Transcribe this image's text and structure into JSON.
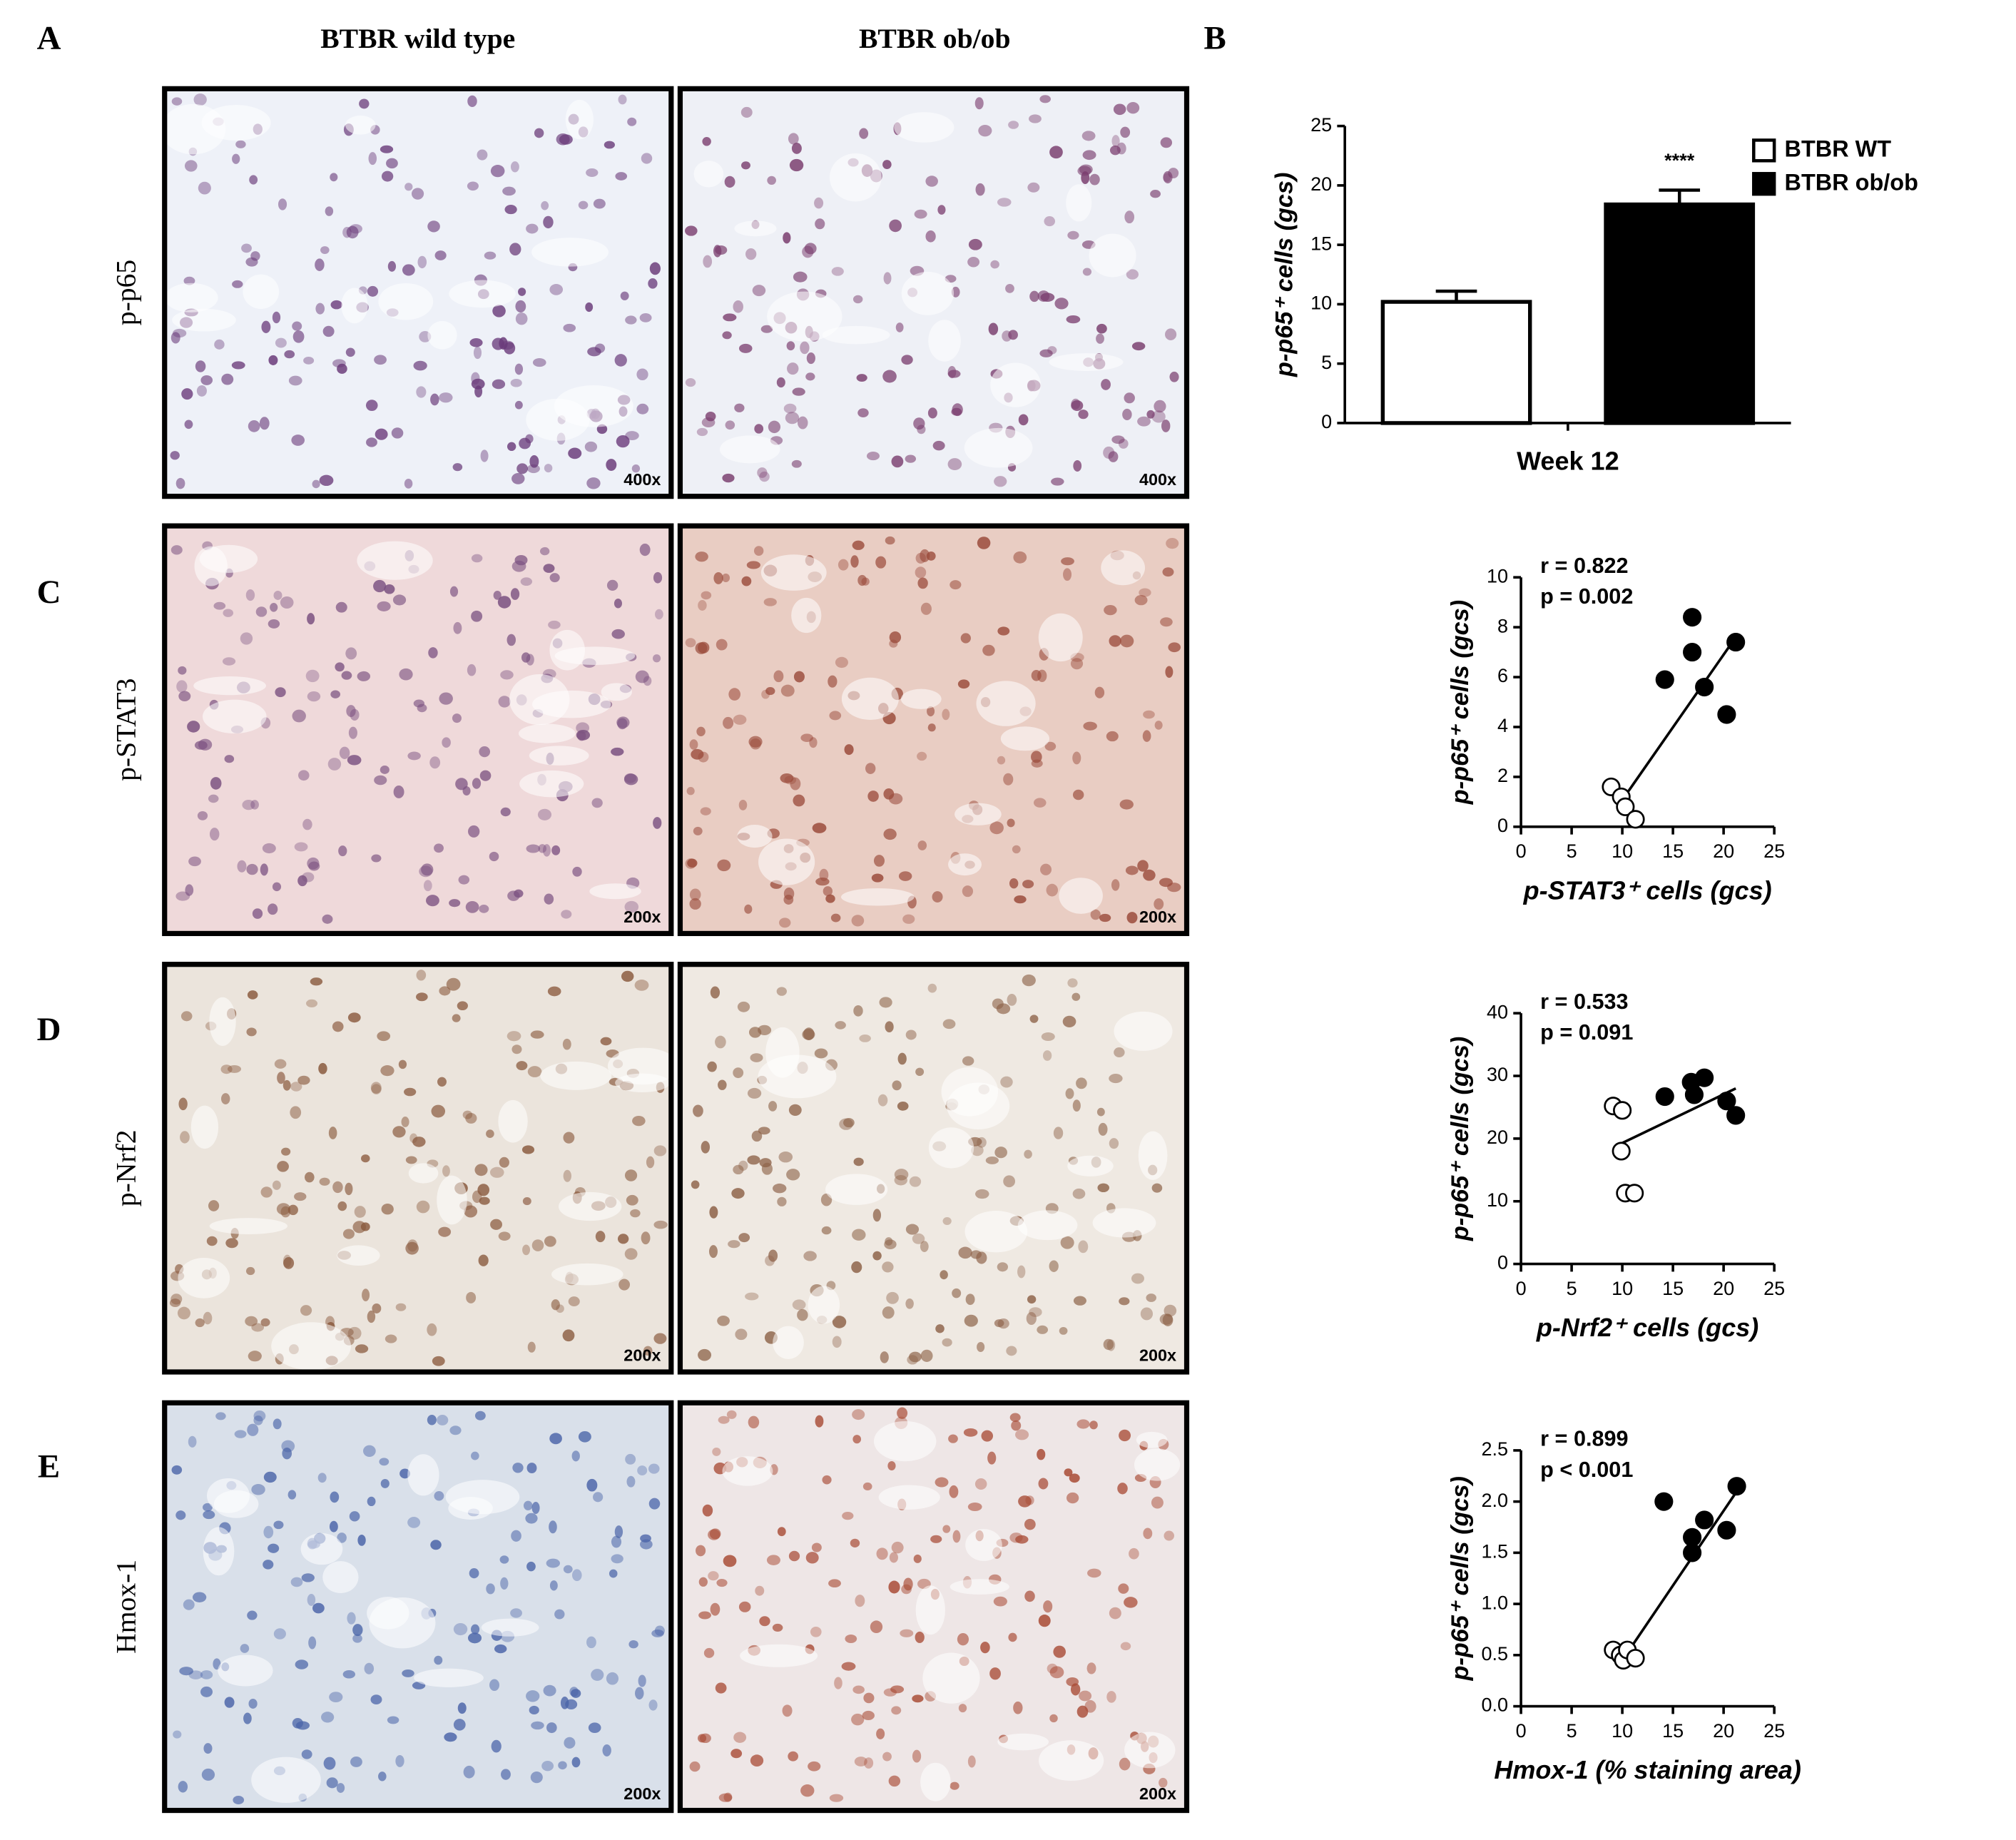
{
  "figure": {
    "panel_labels": [
      "A",
      "B",
      "C",
      "D",
      "E"
    ],
    "column_headers": [
      "BTBR wild type",
      "BTBR ob/ob"
    ],
    "rows": [
      {
        "label": "p-p65",
        "magnifications": [
          "400x",
          "400x"
        ]
      },
      {
        "label": "p-STAT3",
        "magnifications": [
          "200x",
          "200x"
        ]
      },
      {
        "label": "p-Nrf2",
        "magnifications": [
          "200x",
          "200x"
        ]
      },
      {
        "label": "Hmox-1",
        "magnifications": [
          "200x",
          "200x"
        ]
      }
    ]
  },
  "chart_data": [
    {
      "type": "bar",
      "ylabel": "p-p65⁺ cells (gcs)",
      "categories": [
        "Week 12"
      ],
      "series": [
        {
          "name": "BTBR WT",
          "color": "#ffffff",
          "values": [
            10.2
          ],
          "errors": [
            0.9
          ]
        },
        {
          "name": "BTBR ob/ob",
          "color": "#000000",
          "values": [
            18.4
          ],
          "errors": [
            1.2
          ],
          "annotation": "****"
        }
      ],
      "ylim": [
        0,
        25
      ],
      "yticks": [
        0,
        5,
        10,
        15,
        20,
        25
      ]
    },
    {
      "type": "scatter",
      "xlabel": "p-STAT3⁺ cells (gcs)",
      "ylabel": "p-p65⁺ cells (gcs)",
      "annotations": [
        "r = 0.822",
        "p = 0.002"
      ],
      "series": [
        {
          "color": "#ffffff",
          "x": [
            8.9,
            9.9,
            10.3,
            11.3
          ],
          "values": [
            1.6,
            1.2,
            0.8,
            0.3
          ]
        },
        {
          "color": "#000000",
          "x": [
            14.2,
            16.9,
            16.9,
            18.1,
            20.3,
            21.2
          ],
          "values": [
            5.9,
            8.4,
            7.0,
            5.6,
            4.5,
            7.4
          ]
        }
      ],
      "fit": {
        "x": [
          9.7,
          21.2
        ],
        "y": [
          0.9,
          7.6
        ]
      },
      "xlim": [
        0,
        25
      ],
      "xticks": [
        0,
        5,
        10,
        15,
        20,
        25
      ],
      "ylim": [
        0,
        10
      ],
      "yticks": [
        0,
        2,
        4,
        6,
        8,
        10
      ]
    },
    {
      "type": "scatter",
      "xlabel": "p-Nrf2⁺ cells (gcs)",
      "ylabel": "p-p65⁺ cells (gcs)",
      "annotations": [
        "r = 0.533",
        "p = 0.091"
      ],
      "series": [
        {
          "color": "#ffffff",
          "x": [
            9.1,
            10.0,
            9.9,
            10.3,
            11.2
          ],
          "values": [
            25.2,
            24.5,
            18.0,
            11.3,
            11.3
          ]
        },
        {
          "color": "#000000",
          "x": [
            14.2,
            16.8,
            17.1,
            18.1,
            20.3,
            21.2
          ],
          "values": [
            26.7,
            29.0,
            27.0,
            29.7,
            26.0,
            23.7
          ]
        }
      ],
      "fit": {
        "x": [
          9.5,
          21.2
        ],
        "y": [
          18.9,
          28.0
        ]
      },
      "xlim": [
        0,
        25
      ],
      "xticks": [
        0,
        5,
        10,
        15,
        20,
        25
      ],
      "ylim": [
        0,
        40
      ],
      "yticks": [
        0,
        10,
        20,
        30,
        40
      ]
    },
    {
      "type": "scatter",
      "xlabel": "Hmox-1 (% staining area)",
      "ylabel": "p-p65⁺ cells (gcs)",
      "annotations": [
        "r = 0.899",
        "p < 0.001"
      ],
      "series": [
        {
          "color": "#ffffff",
          "x": [
            9.1,
            9.8,
            10.1,
            10.5,
            11.3
          ],
          "values": [
            0.55,
            0.5,
            0.45,
            0.55,
            0.47
          ]
        },
        {
          "color": "#000000",
          "x": [
            14.1,
            16.9,
            16.9,
            18.1,
            20.3,
            21.3
          ],
          "values": [
            2.0,
            1.65,
            1.5,
            1.82,
            1.72,
            2.15
          ]
        }
      ],
      "fit": {
        "x": [
          9.8,
          21.3
        ],
        "y": [
          0.42,
          2.1
        ]
      },
      "xlim": [
        0,
        25
      ],
      "xticks": [
        0,
        5,
        10,
        15,
        20,
        25
      ],
      "ylim": [
        0,
        2.5
      ],
      "yticks": [
        {
          "value": 0,
          "label": "0.0"
        },
        0.5,
        {
          "value": 1,
          "label": "1.0"
        },
        1.5,
        {
          "value": 2,
          "label": "2.0"
        },
        2.5
      ]
    }
  ]
}
